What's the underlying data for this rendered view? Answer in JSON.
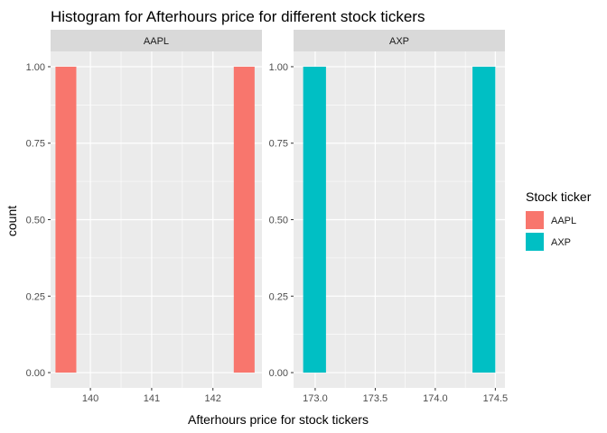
{
  "chart_data": {
    "type": "bar",
    "title": "Histogram for Afterhours price for different stock tickers",
    "xlabel": "Afterhours price for stock tickers",
    "ylabel": "count",
    "grid": true,
    "legend": {
      "title": "Stock ticker",
      "placement": "right",
      "entries": [
        {
          "label": "AAPL",
          "color": "#F8766D"
        },
        {
          "label": "AXP",
          "color": "#00BFC4"
        }
      ]
    },
    "y_ticks": [
      0,
      0.25,
      0.5,
      0.75,
      1
    ],
    "y_tick_labels": [
      "0.00",
      "0.25",
      "0.50",
      "0.75",
      "1.00"
    ],
    "ylim": [
      0,
      1
    ],
    "panels": [
      {
        "strip": "AAPL",
        "color": "#F8766D",
        "xlim": [
          139.35,
          142.8
        ],
        "x_ticks": [
          140,
          141,
          142
        ],
        "x_tick_labels": [
          "140",
          "141",
          "142"
        ],
        "bins": [
          {
            "x_start": 139.43,
            "x_end": 139.77,
            "count": 1
          },
          {
            "x_start": 142.34,
            "x_end": 142.68,
            "count": 1
          }
        ]
      },
      {
        "strip": "AXP",
        "color": "#00BFC4",
        "xlim": [
          172.82,
          174.58
        ],
        "x_ticks": [
          173.0,
          173.5,
          174.0,
          174.5
        ],
        "x_tick_labels": [
          "173.0",
          "173.5",
          "174.0",
          "174.5"
        ],
        "bins": [
          {
            "x_start": 172.9,
            "x_end": 173.09,
            "count": 1
          },
          {
            "x_start": 174.31,
            "x_end": 174.5,
            "count": 1
          }
        ]
      }
    ]
  }
}
